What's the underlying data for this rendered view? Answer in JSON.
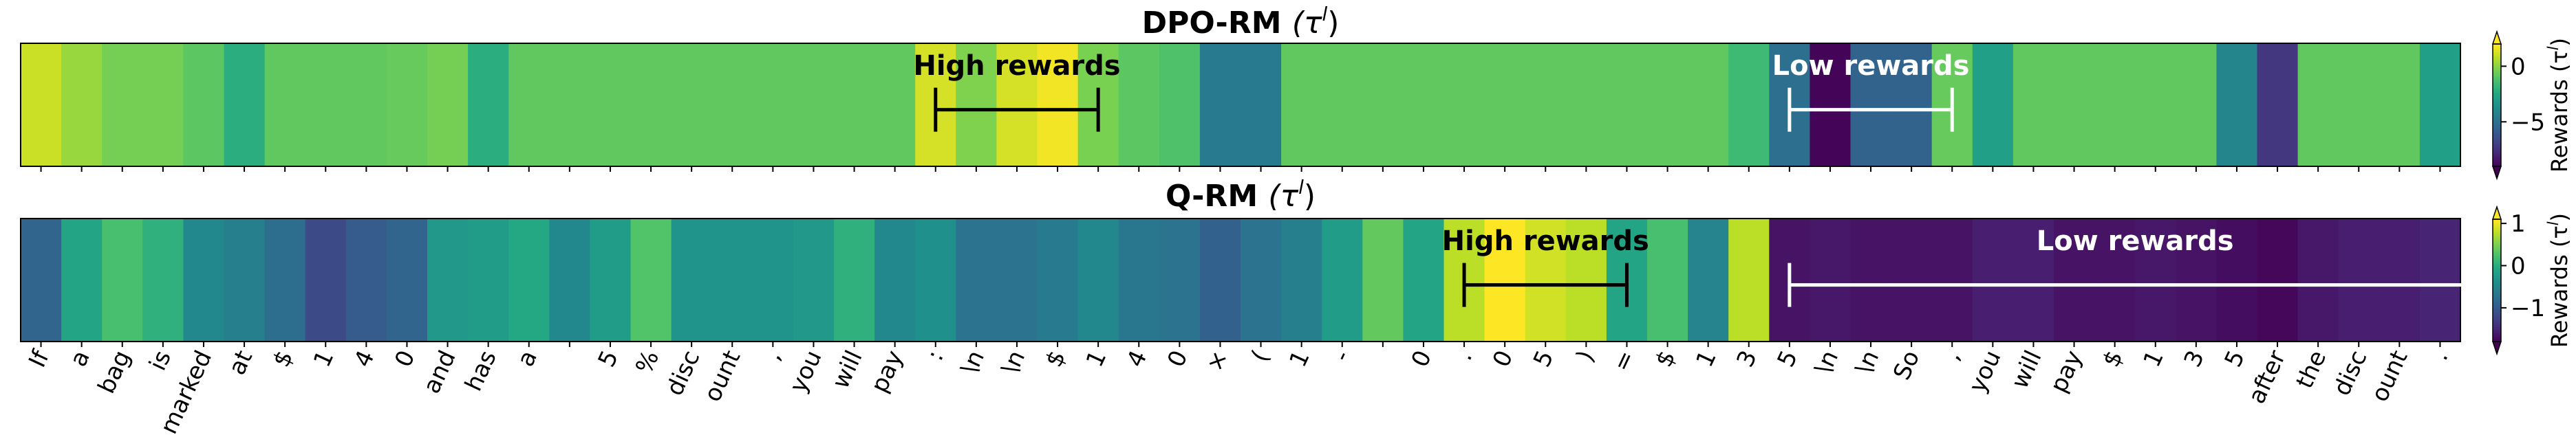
{
  "tokens": [
    "If",
    "a",
    "bag",
    "is",
    "marked",
    "at",
    "$",
    "1",
    "4",
    "0",
    "and",
    "has",
    "a",
    " ",
    "5",
    "%",
    "disc",
    "ount",
    ",",
    "you",
    "will",
    "pay",
    ":",
    "\\n",
    "\\n",
    "$",
    "1",
    "4",
    "0",
    "×",
    "(",
    "1",
    "-",
    " ",
    "0",
    ".",
    "0",
    "5",
    ")",
    "=",
    "$",
    "1",
    "3",
    "5",
    "\\n",
    "\\n",
    "So",
    ",",
    "you",
    "will",
    "pay",
    "$",
    "1",
    "3",
    "5",
    "after",
    "the",
    "disc",
    "ount",
    "."
  ],
  "chart_data": [
    {
      "type": "heatmap",
      "title_text": "DPO-RM",
      "title_math": "(τ",
      "title_sup": "l",
      "title_close": ")",
      "colorbar_label": "Rewards (τ",
      "colorbar_sup": "l",
      "colorbar_close": ")",
      "vmin": -9,
      "vmax": 2,
      "colorbar_ticks": [
        0,
        -5
      ],
      "colorbar_ticks_text": [
        "0",
        "−5"
      ],
      "values": [
        1.1,
        0.3,
        -0.3,
        -0.3,
        -0.8,
        -2.1,
        -0.7,
        -0.7,
        -0.7,
        -0.6,
        -0.3,
        -2.1,
        -0.7,
        -0.7,
        -0.7,
        -0.7,
        -0.7,
        -0.7,
        -0.7,
        -0.7,
        -0.7,
        -0.7,
        1.3,
        -0.1,
        1.3,
        1.8,
        -0.2,
        -0.8,
        -1.1,
        -4.5,
        -4.5,
        -0.7,
        -0.7,
        -0.7,
        -0.7,
        -0.7,
        -0.7,
        -0.7,
        -0.7,
        -0.7,
        -0.7,
        -0.7,
        -1.5,
        -5.0,
        -8.9,
        -5.5,
        -5.5,
        -0.6,
        -2.8,
        -0.7,
        -0.7,
        -0.7,
        -0.7,
        -0.7,
        -4.0,
        -7.2,
        -0.7,
        -0.7,
        -0.7,
        -2.8
      ],
      "annotations": [
        {
          "text": "High rewards",
          "start": 22,
          "end": 26,
          "color": "#000000"
        },
        {
          "text": "Low rewards",
          "start": 43,
          "end": 47,
          "color": "#ffffff"
        }
      ]
    },
    {
      "type": "heatmap",
      "title_text": "Q-RM",
      "title_math": "(τ",
      "title_sup": "l",
      "title_close": ")",
      "colorbar_label": "Rewards (τ",
      "colorbar_sup": "l",
      "colorbar_close": ")",
      "vmin": -1.8,
      "vmax": 1.1,
      "colorbar_ticks": [
        1,
        0,
        -1
      ],
      "colorbar_ticks_text": [
        "1",
        "0",
        "−1"
      ],
      "values": [
        -0.85,
        -0.1,
        0.25,
        0.05,
        -0.45,
        -0.55,
        -0.75,
        -1.15,
        -0.95,
        -0.85,
        -0.25,
        -0.2,
        -0.05,
        -0.45,
        -0.2,
        0.3,
        -0.3,
        -0.3,
        -0.3,
        -0.25,
        0.05,
        -0.45,
        -0.35,
        -0.7,
        -0.7,
        -0.6,
        -0.45,
        -0.65,
        -0.7,
        -0.9,
        -0.7,
        -0.55,
        -0.2,
        0.4,
        -0.1,
        0.8,
        1.1,
        0.9,
        0.8,
        -0.1,
        0.25,
        -0.5,
        0.8,
        -1.65,
        -1.6,
        -1.65,
        -1.65,
        -1.65,
        -1.55,
        -1.55,
        -1.65,
        -1.65,
        -1.6,
        -1.65,
        -1.7,
        -1.75,
        -1.6,
        -1.55,
        -1.55,
        -1.5
      ],
      "annotations": [
        {
          "text": "High rewards",
          "start": 35,
          "end": 39,
          "color": "#000000"
        },
        {
          "text": "Low rewards",
          "start": 43,
          "end": 60,
          "color": "#ffffff"
        }
      ]
    }
  ]
}
